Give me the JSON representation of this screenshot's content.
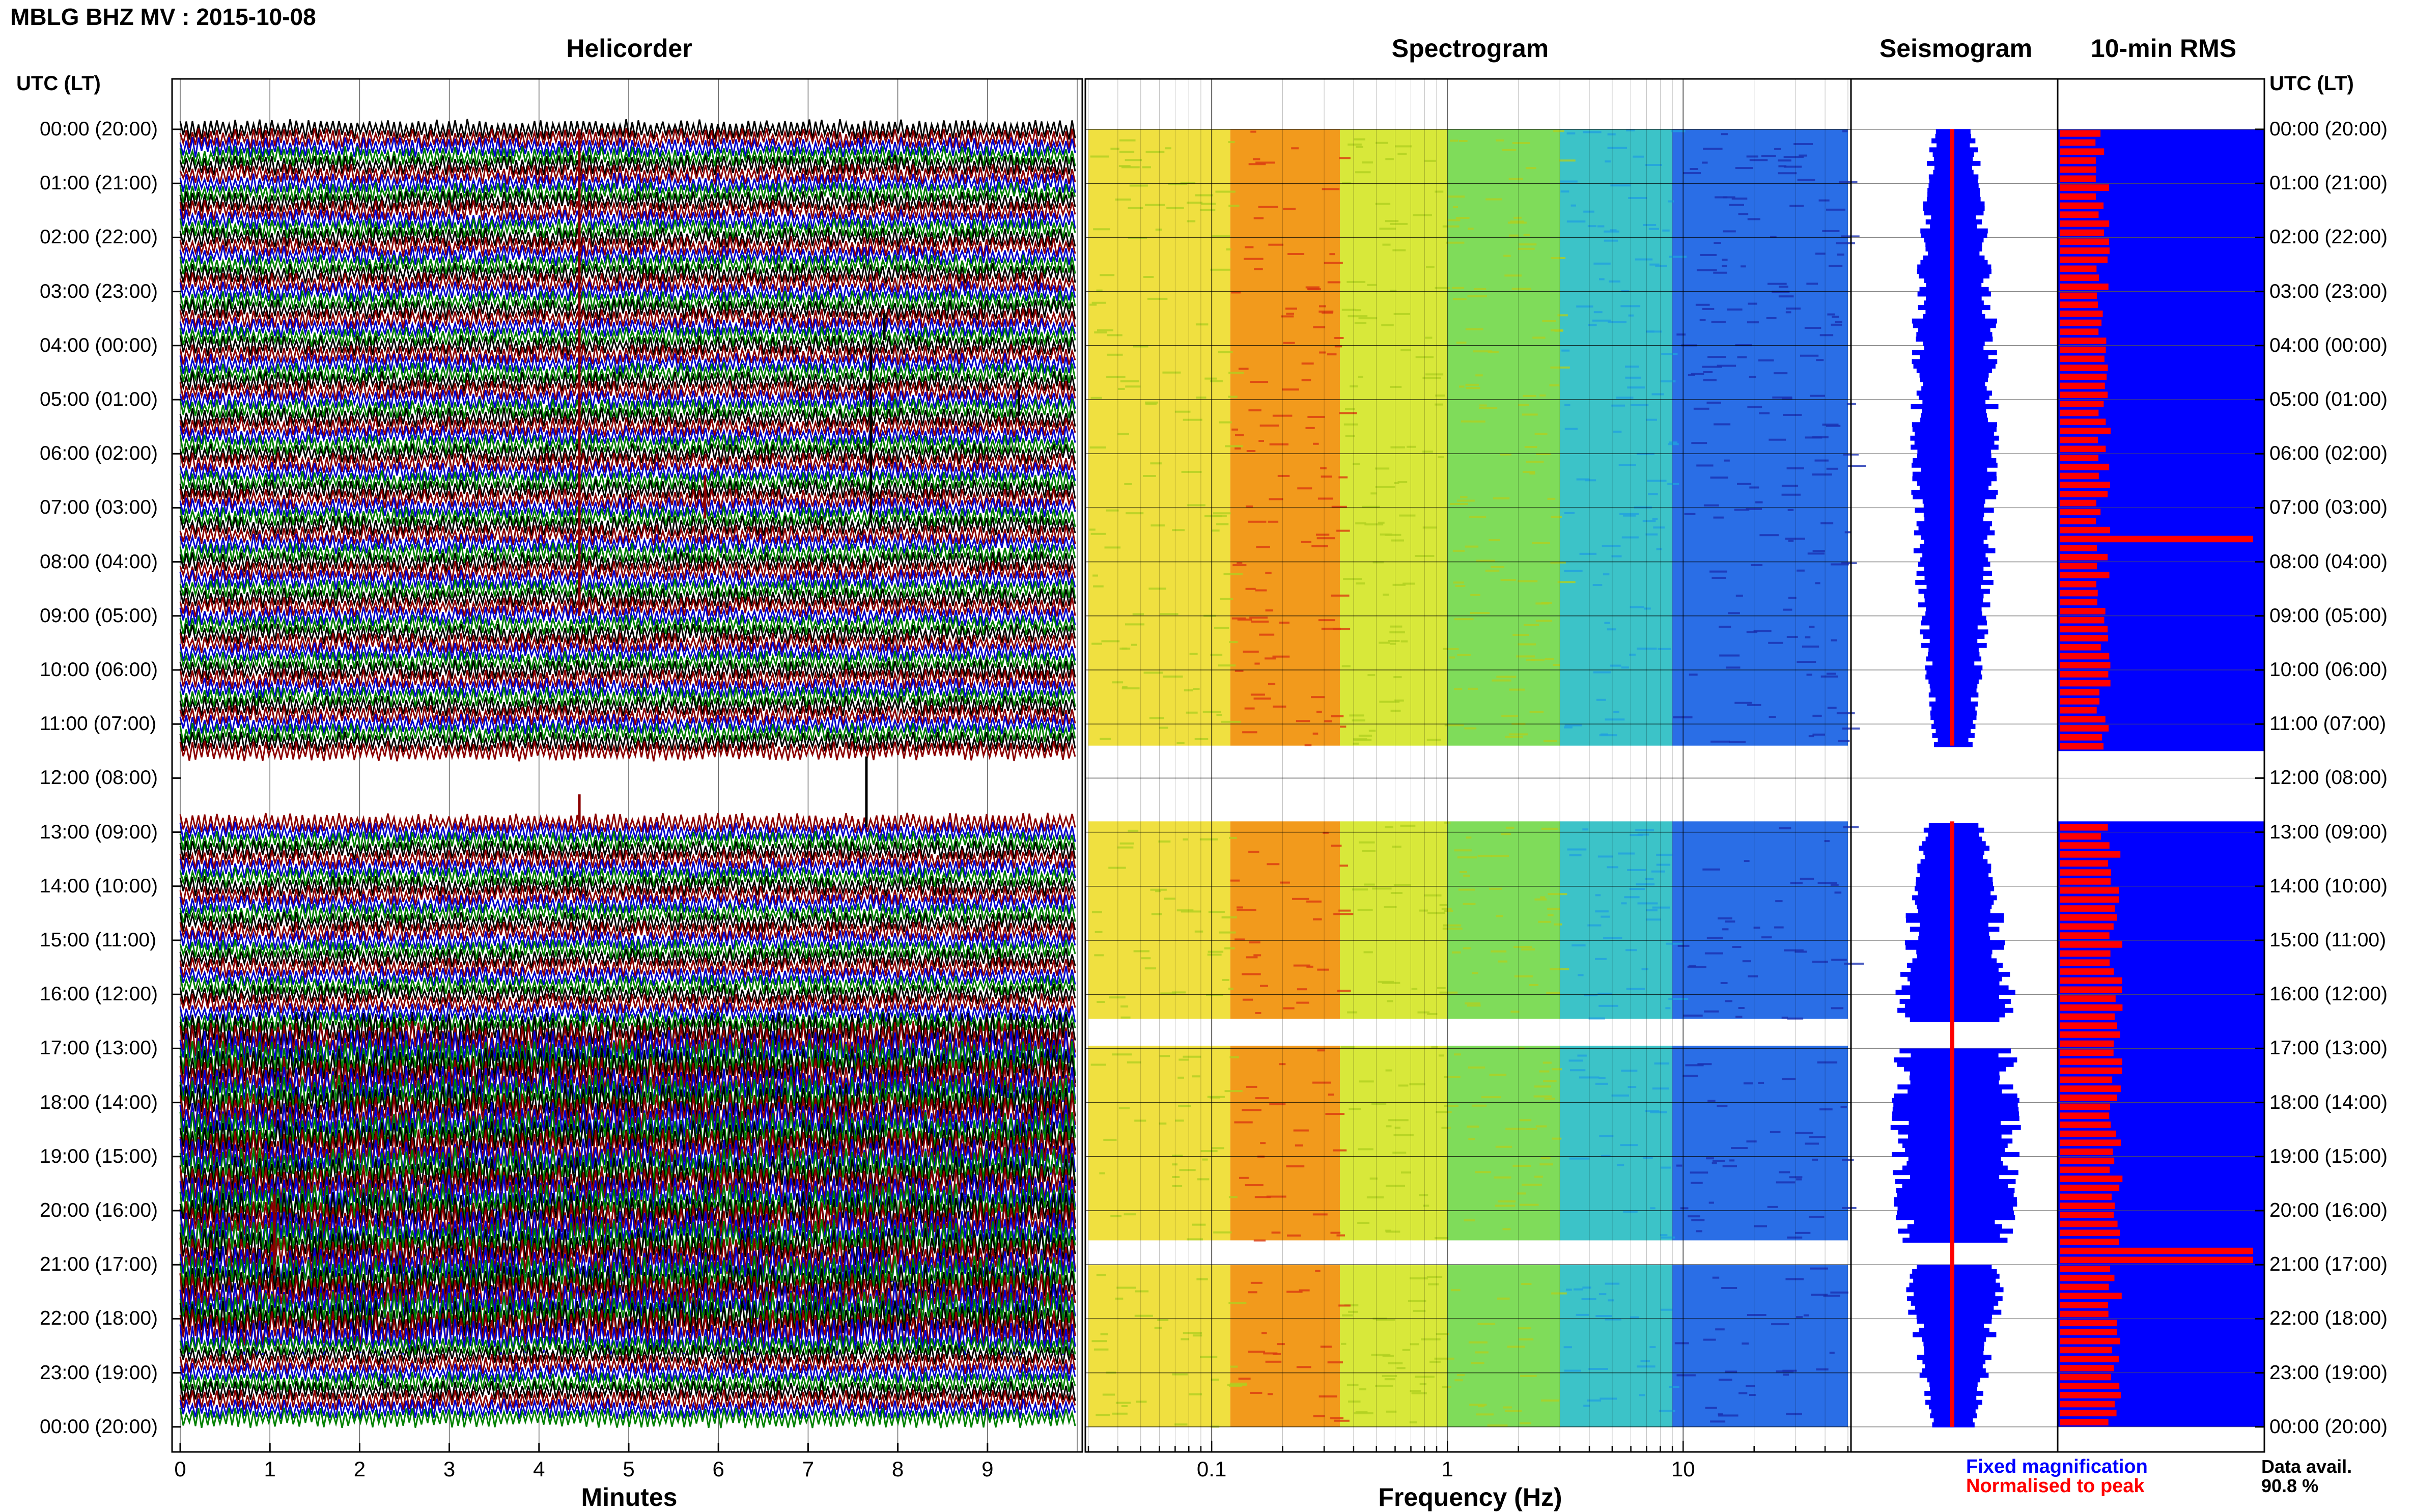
{
  "header": {
    "title": "MBLG BHZ MV : 2015-10-08"
  },
  "panels": {
    "helicorder": "Helicorder",
    "spectrogram": "Spectrogram",
    "seismogram": "Seismogram",
    "rms": "10-min RMS"
  },
  "time_axis": {
    "label": "UTC (LT)",
    "hours": [
      "00:00 (20:00)",
      "01:00 (21:00)",
      "02:00 (22:00)",
      "03:00 (23:00)",
      "04:00 (00:00)",
      "05:00 (01:00)",
      "06:00 (02:00)",
      "07:00 (03:00)",
      "08:00 (04:00)",
      "09:00 (05:00)",
      "10:00 (06:00)",
      "11:00 (07:00)",
      "12:00 (08:00)",
      "13:00 (09:00)",
      "14:00 (10:00)",
      "15:00 (11:00)",
      "16:00 (12:00)",
      "17:00 (13:00)",
      "18:00 (14:00)",
      "19:00 (15:00)",
      "20:00 (16:00)",
      "21:00 (17:00)",
      "22:00 (18:00)",
      "23:00 (19:00)",
      "00:00 (20:00)"
    ]
  },
  "legend": {
    "fixed": "Fixed magnification",
    "normalised": "Normalised to peak",
    "fixed_color": "#0000ff",
    "normalised_color": "#ff0000",
    "avail_label": "Data avail.",
    "avail_value": "90.8 %"
  },
  "chart_data": [
    {
      "type": "line",
      "panel": "helicorder",
      "xlabel": "Minutes",
      "x_ticks": [
        "0",
        "1",
        "2",
        "3",
        "4",
        "5",
        "6",
        "7",
        "8",
        "9"
      ],
      "xlim": [
        0,
        10
      ],
      "trace_colors": [
        "#000000",
        "#8b0000",
        "#0000cd",
        "#008000"
      ],
      "gap_hours": [
        11.5,
        12.7
      ]
    },
    {
      "type": "heatmap",
      "panel": "spectrogram",
      "xlabel": "Frequency (Hz)",
      "x_ticks": [
        "0.1",
        "1",
        "10"
      ],
      "x_scale": "log",
      "xlim": [
        0.03,
        50
      ],
      "gaps_hours": [
        [
          11.4,
          12.8
        ],
        [
          16.45,
          16.95
        ],
        [
          20.55,
          21.0
        ]
      ]
    },
    {
      "type": "line",
      "panel": "seismogram",
      "fixed_color": "#0000ff",
      "normalised_color": "#ff0000",
      "gap_hours": [
        11.4,
        12.8
      ]
    },
    {
      "type": "bar",
      "panel": "10-min RMS",
      "bar_color": "#ff0000",
      "bg_color": "#0000ff",
      "peaks_hours": [
        7.5,
        20.75
      ],
      "gap_hours": [
        11.5,
        12.8
      ]
    }
  ]
}
